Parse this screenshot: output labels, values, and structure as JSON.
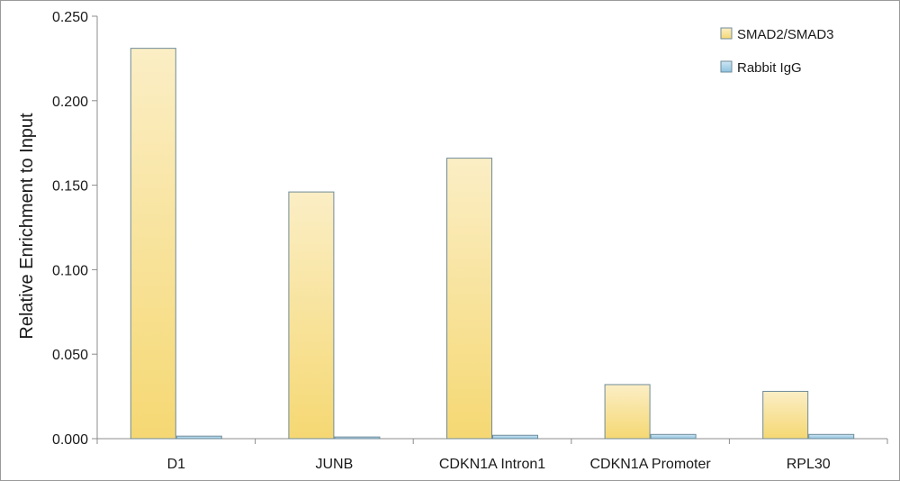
{
  "chart_data": {
    "type": "bar",
    "title": "",
    "xlabel": "",
    "ylabel": "Relative Enrichment to Input",
    "ylim": [
      0,
      0.25
    ],
    "yticks": [
      "0.000",
      "0.050",
      "0.100",
      "0.150",
      "0.200",
      "0.250"
    ],
    "categories": [
      "D1",
      "JUNB",
      "CDKN1A Intron1",
      "CDKN1A Promoter",
      "RPL30"
    ],
    "series": [
      {
        "name": "SMAD2/SMAD3",
        "values": [
          0.231,
          0.146,
          0.166,
          0.032,
          0.028
        ]
      },
      {
        "name": "Rabbit IgG",
        "values": [
          0.0015,
          0.001,
          0.002,
          0.0025,
          0.0025
        ]
      }
    ],
    "legend_position": "top-right",
    "grid": false,
    "colors": {
      "series0_top": "#fbeec5",
      "series0_bottom": "#f5d873",
      "series1_top": "#cfe6f3",
      "series1_bottom": "#8ec3e0",
      "bar_stroke": "#6f8b9a",
      "axis": "#8c8c8c"
    }
  }
}
